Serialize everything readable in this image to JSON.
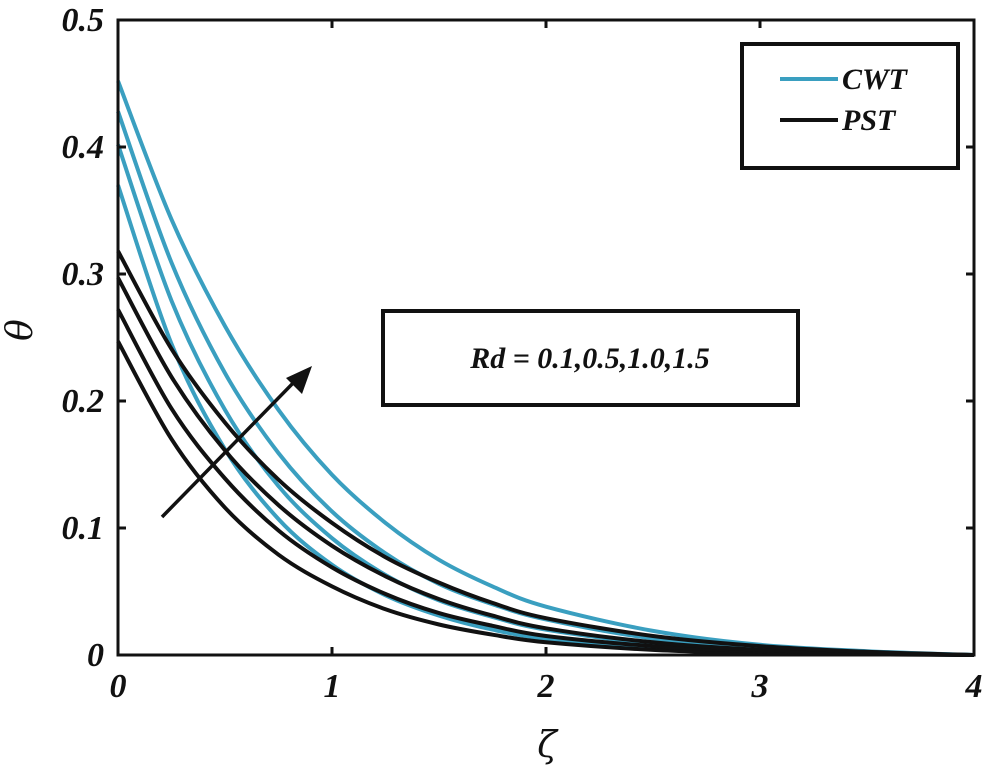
{
  "chart_data": {
    "type": "line",
    "xlabel": "ζ",
    "ylabel": "θ",
    "xlim": [
      0,
      4
    ],
    "ylim": [
      0,
      0.5
    ],
    "xticks": [
      "0",
      "1",
      "2",
      "3",
      "4"
    ],
    "yticks": [
      "0",
      "0.1",
      "0.2",
      "0.3",
      "0.4",
      "0.5"
    ],
    "grid": false,
    "legend_position": "top-right",
    "legend": [
      {
        "label": "CWT",
        "color": "#3a9fc0"
      },
      {
        "label": "PST",
        "color": "#111111"
      }
    ],
    "annotation": "Rd = 0.1,0.5,1.0,1.5",
    "series": [
      {
        "group": "CWT",
        "color": "#3a9fc0",
        "x": [
          0,
          0.25,
          0.5,
          0.75,
          1,
          1.25,
          1.5,
          1.75,
          2,
          2.5,
          3,
          3.5,
          4
        ],
        "y": [
          0.37,
          0.245,
          0.162,
          0.107,
          0.071,
          0.047,
          0.031,
          0.02,
          0.013,
          0.006,
          0.0025,
          0.001,
          0
        ]
      },
      {
        "group": "CWT",
        "color": "#3a9fc0",
        "x": [
          0,
          0.25,
          0.5,
          0.75,
          1,
          1.25,
          1.5,
          1.75,
          2,
          2.5,
          3,
          3.5,
          4
        ],
        "y": [
          0.402,
          0.279,
          0.193,
          0.133,
          0.092,
          0.063,
          0.043,
          0.03,
          0.02,
          0.009,
          0.004,
          0.0015,
          0
        ]
      },
      {
        "group": "CWT",
        "color": "#3a9fc0",
        "x": [
          0,
          0.25,
          0.5,
          0.75,
          1,
          1.25,
          1.5,
          1.75,
          2,
          2.5,
          3,
          3.5,
          4
        ],
        "y": [
          0.428,
          0.309,
          0.222,
          0.159,
          0.113,
          0.08,
          0.056,
          0.04,
          0.028,
          0.013,
          0.006,
          0.002,
          0
        ]
      },
      {
        "group": "CWT",
        "color": "#3a9fc0",
        "x": [
          0,
          0.25,
          0.5,
          0.75,
          1,
          1.25,
          1.5,
          1.75,
          2,
          2.5,
          3,
          3.5,
          4
        ],
        "y": [
          0.452,
          0.343,
          0.259,
          0.193,
          0.142,
          0.104,
          0.075,
          0.054,
          0.038,
          0.019,
          0.008,
          0.003,
          0
        ]
      },
      {
        "group": "PST",
        "color": "#111111",
        "x": [
          0,
          0.25,
          0.5,
          0.75,
          1,
          1.25,
          1.5,
          1.75,
          2,
          2.5,
          3,
          3.5,
          4
        ],
        "y": [
          0.247,
          0.17,
          0.116,
          0.079,
          0.054,
          0.036,
          0.024,
          0.016,
          0.01,
          0.004,
          0.0015,
          0.0005,
          0
        ]
      },
      {
        "group": "PST",
        "color": "#111111",
        "x": [
          0,
          0.25,
          0.5,
          0.75,
          1,
          1.25,
          1.5,
          1.75,
          2,
          2.5,
          3,
          3.5,
          4
        ],
        "y": [
          0.272,
          0.194,
          0.139,
          0.098,
          0.069,
          0.048,
          0.033,
          0.023,
          0.015,
          0.007,
          0.003,
          0.001,
          0
        ]
      },
      {
        "group": "PST",
        "color": "#111111",
        "x": [
          0,
          0.25,
          0.5,
          0.75,
          1,
          1.25,
          1.5,
          1.75,
          2,
          2.5,
          3,
          3.5,
          4
        ],
        "y": [
          0.297,
          0.219,
          0.161,
          0.118,
          0.086,
          0.062,
          0.044,
          0.031,
          0.021,
          0.01,
          0.004,
          0.0015,
          0
        ]
      },
      {
        "group": "PST",
        "color": "#111111",
        "x": [
          0,
          0.25,
          0.5,
          0.75,
          1,
          1.25,
          1.5,
          1.75,
          2,
          2.5,
          3,
          3.5,
          4
        ],
        "y": [
          0.318,
          0.241,
          0.183,
          0.138,
          0.104,
          0.077,
          0.057,
          0.041,
          0.029,
          0.015,
          0.007,
          0.0025,
          0
        ]
      }
    ]
  }
}
